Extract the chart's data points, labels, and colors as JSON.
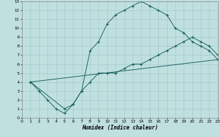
{
  "xlabel": "Humidex (Indice chaleur)",
  "bg_color": "#c0e0e0",
  "grid_color": "#a8cccc",
  "line_color": "#1a6060",
  "xlim": [
    0,
    23
  ],
  "ylim": [
    0,
    13
  ],
  "xticks": [
    0,
    1,
    2,
    3,
    4,
    5,
    6,
    7,
    8,
    9,
    10,
    11,
    12,
    13,
    14,
    15,
    16,
    17,
    18,
    19,
    20,
    21,
    22,
    23
  ],
  "yticks": [
    0,
    1,
    2,
    3,
    4,
    5,
    6,
    7,
    8,
    9,
    10,
    11,
    12,
    13
  ],
  "curve1_x": [
    1,
    2,
    3,
    4,
    5,
    6,
    7,
    8,
    9,
    10,
    11,
    12,
    13,
    14,
    15,
    16,
    17,
    18,
    19,
    20,
    21,
    22,
    23
  ],
  "curve1_y": [
    4.0,
    3.0,
    2.0,
    1.0,
    0.5,
    1.5,
    3.0,
    7.5,
    8.5,
    10.5,
    11.5,
    12.0,
    12.5,
    13.0,
    12.5,
    12.0,
    11.5,
    10.0,
    9.5,
    8.5,
    8.0,
    7.5,
    6.5
  ],
  "curve2_x": [
    1,
    5,
    6,
    7,
    8,
    9,
    10,
    11,
    12,
    13,
    14,
    15,
    16,
    17,
    18,
    19,
    20,
    21,
    22,
    23
  ],
  "curve2_y": [
    4.0,
    1.0,
    1.5,
    3.0,
    4.0,
    5.0,
    5.0,
    5.0,
    5.5,
    6.0,
    6.0,
    6.5,
    7.0,
    7.5,
    8.0,
    8.5,
    9.0,
    8.5,
    8.0,
    7.0
  ],
  "curve3_x": [
    1,
    23
  ],
  "curve3_y": [
    4.0,
    6.5
  ]
}
